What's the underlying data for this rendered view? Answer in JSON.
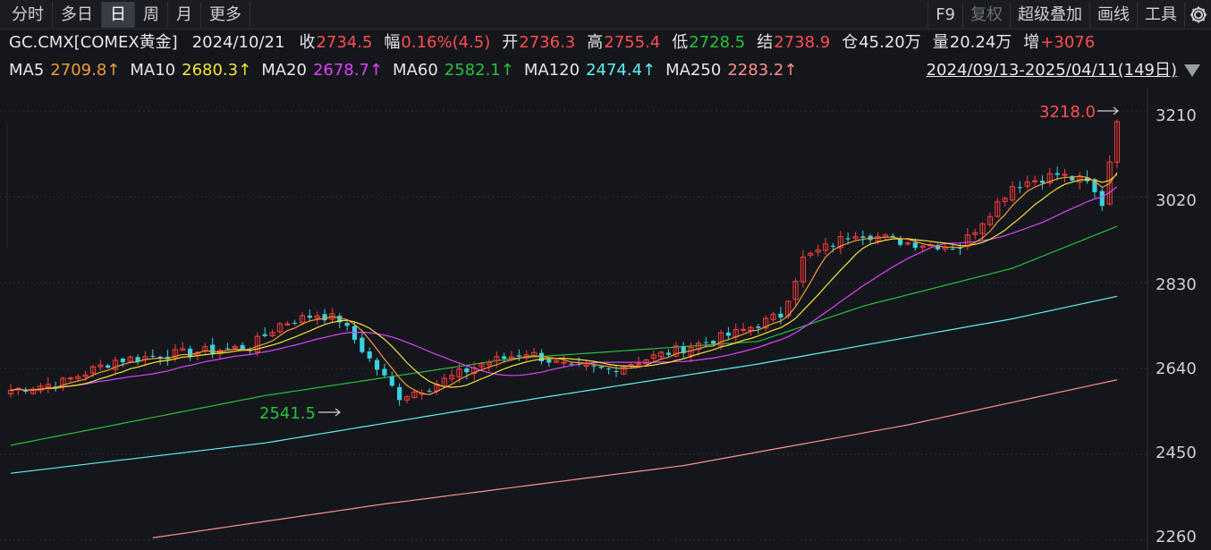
{
  "toolbar": {
    "tabs": [
      {
        "label": "分时",
        "active": false
      },
      {
        "label": "多日",
        "active": false
      },
      {
        "label": "日",
        "active": true
      },
      {
        "label": "周",
        "active": false
      },
      {
        "label": "月",
        "active": false
      },
      {
        "label": "更多",
        "active": false
      }
    ],
    "tools": {
      "f9": "F9",
      "restore": "复权",
      "overlay": "超级叠加",
      "draw": "画线",
      "tools": "工具",
      "settings_icon": "gear-icon"
    }
  },
  "quote": {
    "symbol": "GC.CMX[COMEX黄金]",
    "date": "2024/10/21",
    "close_label": "收",
    "close": "2734.5",
    "change_label": "幅",
    "change": "0.16%(4.5)",
    "open_label": "开",
    "open": "2736.3",
    "high_label": "高",
    "high": "2755.4",
    "low_label": "低",
    "low": "2728.5",
    "settle_label": "结",
    "settle": "2738.9",
    "oi_label": "仓",
    "oi": "45.20万",
    "volume_label": "量",
    "volume": "20.24万",
    "oi_change_label": "增",
    "oi_change": "+3076"
  },
  "moving_averages": [
    {
      "label": "MA5",
      "value": "2709.8↑",
      "color": "#f39c35"
    },
    {
      "label": "MA10",
      "value": "2680.3↑",
      "color": "#f5e33b"
    },
    {
      "label": "MA20",
      "value": "2678.7↑",
      "color": "#e040fb"
    },
    {
      "label": "MA60",
      "value": "2582.1↑",
      "color": "#27c03b"
    },
    {
      "label": "MA120",
      "value": "2474.4↑",
      "color": "#5ff0f0"
    },
    {
      "label": "MA250",
      "value": "2283.2↑",
      "color": "#ff8f8f"
    }
  ],
  "range": {
    "label": "2024/09/13-2025/04/11(149日)"
  },
  "colors": {
    "up": "#ff3b3b",
    "down": "#38d1dc",
    "grid": "#2a2d35",
    "background": "#14161c"
  },
  "chart_data": {
    "type": "candlestick",
    "x_start": "2024/09/13",
    "x_end": "2025/04/11",
    "bar_count": 149,
    "ylim": [
      2238,
      3262
    ],
    "yticks": [
      2260,
      2450,
      2640,
      2830,
      3020,
      3210
    ],
    "annotations": {
      "max": {
        "value": "3218.0",
        "color": "#ff4d4f"
      },
      "min": {
        "value": "2541.5",
        "color": "#27c03b"
      }
    },
    "anchors": [
      {
        "i": 0,
        "c": 2592
      },
      {
        "i": 7,
        "c": 2610
      },
      {
        "i": 14,
        "c": 2658
      },
      {
        "i": 22,
        "c": 2672
      },
      {
        "i": 32,
        "c": 2688
      },
      {
        "i": 36,
        "c": 2738
      },
      {
        "i": 41,
        "c": 2760
      },
      {
        "i": 44,
        "c": 2748
      },
      {
        "i": 48,
        "c": 2660
      },
      {
        "i": 52,
        "c": 2578
      },
      {
        "i": 56,
        "c": 2600
      },
      {
        "i": 63,
        "c": 2650
      },
      {
        "i": 69,
        "c": 2676
      },
      {
        "i": 75,
        "c": 2640
      },
      {
        "i": 80,
        "c": 2638
      },
      {
        "i": 89,
        "c": 2680
      },
      {
        "i": 97,
        "c": 2718
      },
      {
        "i": 103,
        "c": 2758
      },
      {
        "i": 106,
        "c": 2882
      },
      {
        "i": 113,
        "c": 2942
      },
      {
        "i": 120,
        "c": 2918
      },
      {
        "i": 127,
        "c": 2910
      },
      {
        "i": 134,
        "c": 3045
      },
      {
        "i": 140,
        "c": 3070
      },
      {
        "i": 144,
        "c": 3050
      },
      {
        "i": 146,
        "c": 3005
      },
      {
        "i": 148,
        "c": 3196
      }
    ],
    "ma60_points": [
      [
        0,
        2470
      ],
      [
        34,
        2580
      ],
      [
        67,
        2662
      ],
      [
        100,
        2700
      ],
      [
        114,
        2778
      ],
      [
        134,
        2862
      ],
      [
        148,
        2955
      ]
    ],
    "ma120_points": [
      [
        0,
        2408
      ],
      [
        34,
        2475
      ],
      [
        67,
        2565
      ],
      [
        100,
        2650
      ],
      [
        134,
        2750
      ],
      [
        148,
        2800
      ]
    ],
    "ma250_points": [
      [
        19,
        2265
      ],
      [
        50,
        2340
      ],
      [
        90,
        2425
      ],
      [
        120,
        2515
      ],
      [
        148,
        2615
      ]
    ]
  }
}
